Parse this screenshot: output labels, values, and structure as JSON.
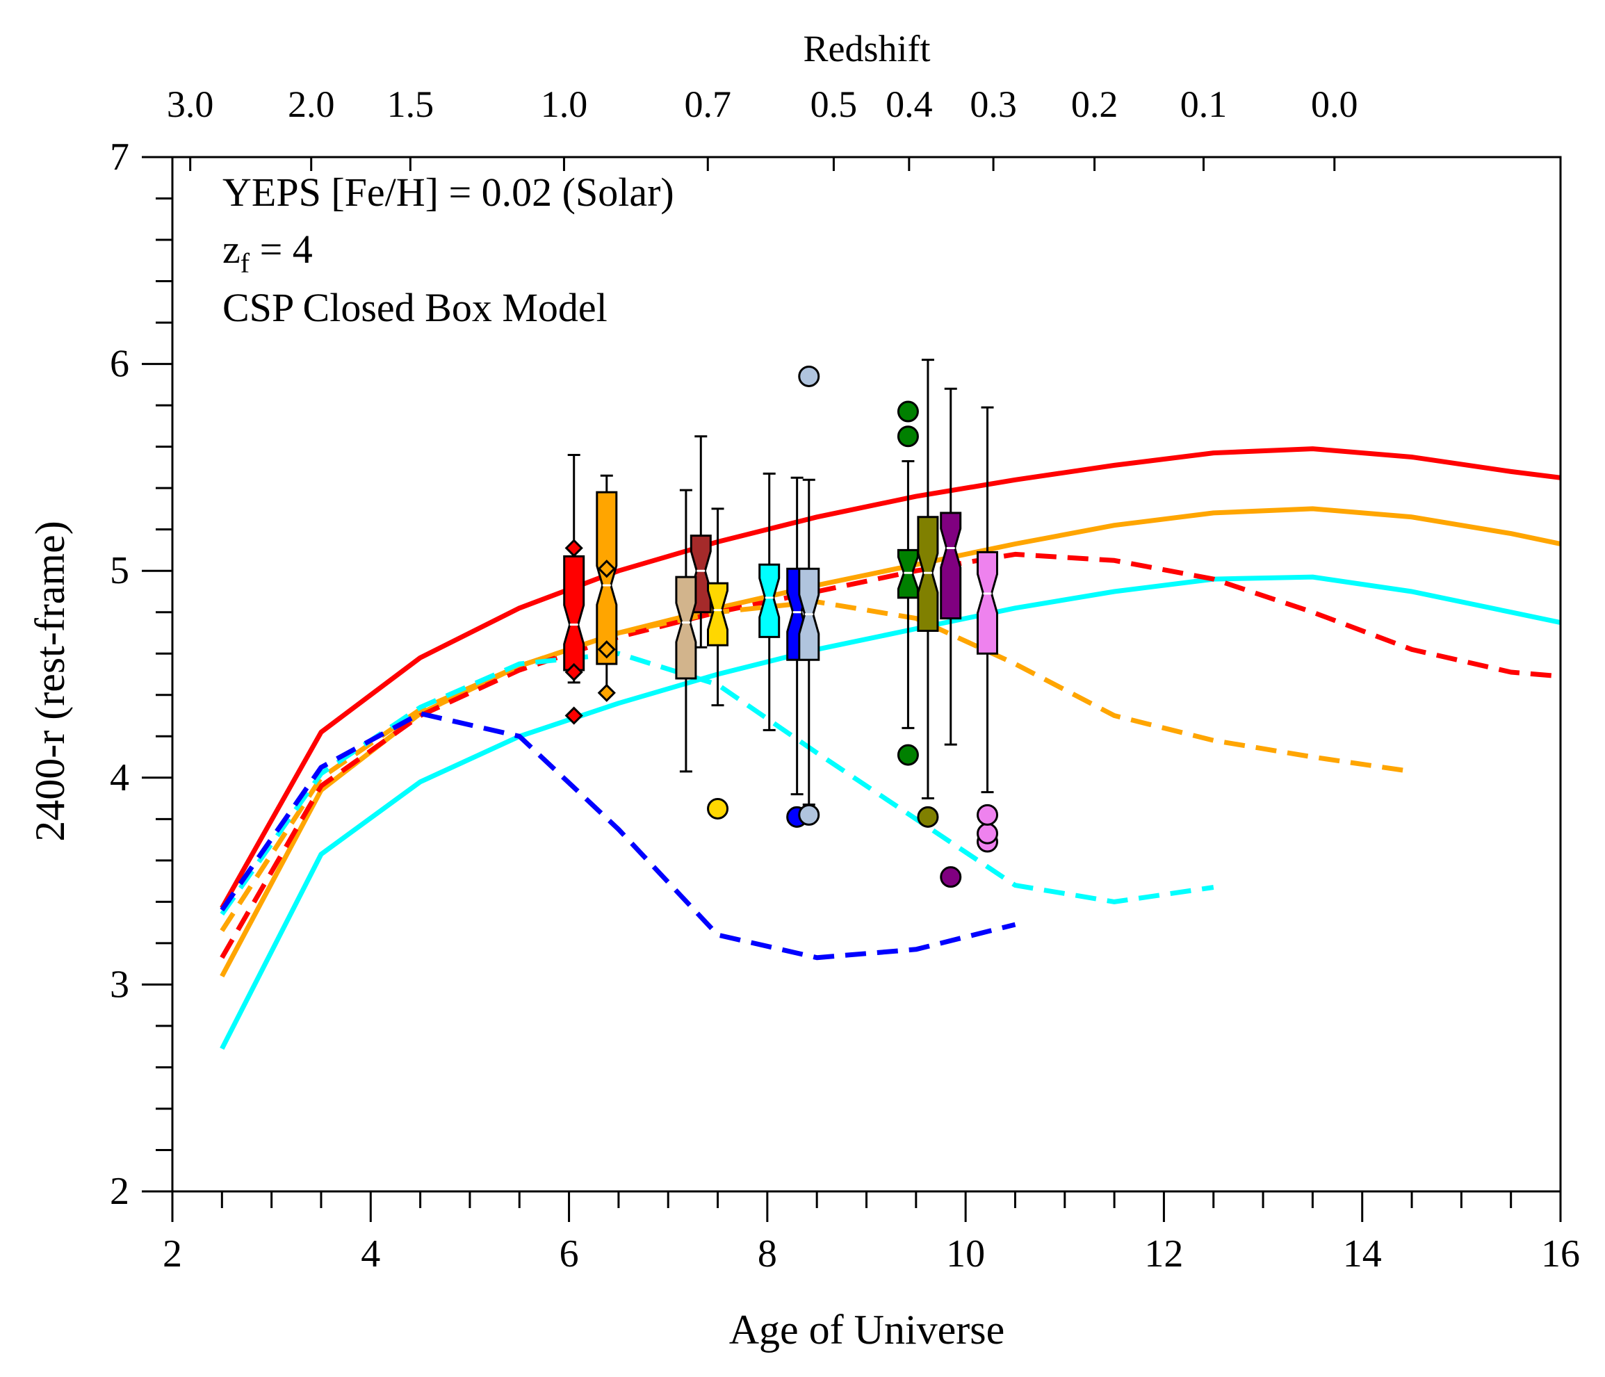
{
  "chart_data": {
    "type": "line",
    "xlabel": "Age of Universe",
    "ylabel": "2400-r (rest-frame)",
    "top_axis_label": "Redshift",
    "xlim": [
      2,
      16
    ],
    "ylim": [
      2,
      7
    ],
    "xticks": [
      "2",
      "4",
      "6",
      "8",
      "10",
      "12",
      "14",
      "16"
    ],
    "yticks": [
      "2",
      "3",
      "4",
      "5",
      "6",
      "7"
    ],
    "redshift_ticks": [
      {
        "label": "3.0",
        "age": 2.18
      },
      {
        "label": "2.0",
        "age": 3.4
      },
      {
        "label": "1.5",
        "age": 4.4
      },
      {
        "label": "1.0",
        "age": 5.95
      },
      {
        "label": "0.7",
        "age": 7.4
      },
      {
        "label": "0.5",
        "age": 8.67
      },
      {
        "label": "0.4",
        "age": 9.43
      },
      {
        "label": "0.3",
        "age": 10.28
      },
      {
        "label": "0.2",
        "age": 11.3
      },
      {
        "label": "0.1",
        "age": 12.4
      },
      {
        "label": "0.0",
        "age": 13.72
      }
    ],
    "annotations": {
      "line1": "YEPS [Fe/H] = 0.02 (Solar)",
      "line2_main": "z",
      "line2_sub": "f",
      "line2_rest": " = 4",
      "line3": "CSP Closed Box Model"
    },
    "series": [
      {
        "name": "red-solid",
        "color": "#ff0000",
        "style": "solid",
        "x": [
          2.5,
          3.5,
          4.5,
          5.5,
          6.5,
          7.5,
          8.5,
          9.5,
          10.5,
          11.5,
          12.5,
          13.5,
          14.5,
          15.5,
          16
        ],
        "y": [
          3.37,
          4.22,
          4.58,
          4.82,
          5.0,
          5.14,
          5.26,
          5.36,
          5.44,
          5.51,
          5.57,
          5.59,
          5.55,
          5.48,
          5.45
        ]
      },
      {
        "name": "orange-solid",
        "color": "#ffa500",
        "style": "solid",
        "x": [
          2.5,
          3.5,
          4.5,
          5.5,
          6.5,
          7.5,
          8.5,
          9.5,
          10.5,
          11.5,
          12.5,
          13.5,
          14.5,
          15.5,
          16
        ],
        "y": [
          3.04,
          3.94,
          4.31,
          4.54,
          4.7,
          4.82,
          4.93,
          5.03,
          5.13,
          5.22,
          5.28,
          5.3,
          5.26,
          5.18,
          5.13
        ]
      },
      {
        "name": "cyan-solid",
        "color": "#00ffff",
        "style": "solid",
        "x": [
          2.5,
          3.5,
          4.5,
          5.5,
          6.5,
          7.5,
          8.5,
          9.5,
          10.5,
          11.5,
          12.5,
          13.5,
          14.5,
          15.5,
          16
        ],
        "y": [
          2.69,
          3.63,
          3.98,
          4.2,
          4.36,
          4.5,
          4.62,
          4.72,
          4.82,
          4.9,
          4.96,
          4.97,
          4.9,
          4.8,
          4.75
        ]
      },
      {
        "name": "red-dashed",
        "color": "#ff0000",
        "style": "dashed",
        "x": [
          2.5,
          3.5,
          4.5,
          5.5,
          6.5,
          7.5,
          8.5,
          9.5,
          10.5,
          11.5,
          12.5,
          13.5,
          14.5,
          15.5,
          16
        ],
        "y": [
          3.13,
          3.96,
          4.3,
          4.52,
          4.68,
          4.8,
          4.9,
          5.0,
          5.08,
          5.05,
          4.96,
          4.8,
          4.62,
          4.51,
          4.49
        ]
      },
      {
        "name": "orange-dashed",
        "color": "#ffa500",
        "style": "dashed",
        "x": [
          2.5,
          3.5,
          4.5,
          5.5,
          6.5,
          7.5,
          8.5,
          9.5,
          10.5,
          11.5,
          12.5,
          13.5,
          14.5
        ],
        "y": [
          3.26,
          4.0,
          4.33,
          4.54,
          4.7,
          4.8,
          4.85,
          4.77,
          4.55,
          4.3,
          4.18,
          4.1,
          4.03
        ]
      },
      {
        "name": "cyan-dashed",
        "color": "#00ffff",
        "style": "dashed",
        "x": [
          2.5,
          3.5,
          4.5,
          5.5,
          6.5,
          7.5,
          8.5,
          9.5,
          10.5,
          11.5,
          12.5
        ],
        "y": [
          3.34,
          4.02,
          4.34,
          4.55,
          4.6,
          4.45,
          4.12,
          3.8,
          3.48,
          3.4,
          3.47
        ]
      },
      {
        "name": "blue-dashed",
        "color": "#0000ff",
        "style": "dashed",
        "x": [
          2.5,
          3.5,
          4.5,
          5.5,
          6.5,
          7.5,
          8.5,
          9.5,
          10.5
        ],
        "y": [
          3.36,
          4.05,
          4.31,
          4.2,
          3.75,
          3.24,
          3.13,
          3.17,
          3.29
        ]
      }
    ],
    "boxes": [
      {
        "name": "red",
        "color": "#ff0000",
        "x": 6.05,
        "whisker_low": 4.46,
        "q1": 4.52,
        "median": 4.74,
        "q3": 5.07,
        "whisker_high": 5.56,
        "outliers": [
          4.3,
          4.51,
          5.11
        ],
        "marker": "diamond"
      },
      {
        "name": "orange",
        "color": "#ffa500",
        "x": 6.38,
        "whisker_low": 4.4,
        "q1": 4.55,
        "median": 4.93,
        "q3": 5.38,
        "whisker_high": 5.46,
        "outliers": [
          4.41,
          4.62,
          5.01
        ],
        "marker": "diamond"
      },
      {
        "name": "brown",
        "color": "#a52a2a",
        "x": 7.33,
        "whisker_low": 4.63,
        "q1": 4.8,
        "median": 5.0,
        "q3": 5.17,
        "whisker_high": 5.65,
        "outliers": [],
        "marker": "circle"
      },
      {
        "name": "tan",
        "color": "#d2b48c",
        "x": 7.18,
        "whisker_low": 4.03,
        "q1": 4.48,
        "median": 4.75,
        "q3": 4.97,
        "whisker_high": 5.39,
        "outliers": [],
        "marker": "circle"
      },
      {
        "name": "gold",
        "color": "#ffd700",
        "x": 7.5,
        "whisker_low": 4.35,
        "q1": 4.64,
        "median": 4.81,
        "q3": 4.94,
        "whisker_high": 5.3,
        "outliers": [
          3.85
        ],
        "marker": "circle"
      },
      {
        "name": "cyan",
        "color": "#00ffff",
        "x": 8.02,
        "whisker_low": 4.23,
        "q1": 4.68,
        "median": 4.87,
        "q3": 5.03,
        "whisker_high": 5.47,
        "outliers": [],
        "marker": "circle"
      },
      {
        "name": "blue",
        "color": "#0000ff",
        "x": 8.3,
        "whisker_low": 3.92,
        "q1": 4.57,
        "median": 4.8,
        "q3": 5.01,
        "whisker_high": 5.45,
        "outliers": [
          3.81
        ],
        "marker": "circle"
      },
      {
        "name": "lightsteelblue",
        "color": "#b0c4de",
        "x": 8.42,
        "whisker_low": 3.87,
        "q1": 4.57,
        "median": 4.79,
        "q3": 5.01,
        "whisker_high": 5.44,
        "outliers": [
          3.82,
          5.94
        ],
        "marker": "circle"
      },
      {
        "name": "green",
        "color": "#008000",
        "x": 9.42,
        "whisker_low": 4.24,
        "q1": 4.87,
        "median": 4.99,
        "q3": 5.1,
        "whisker_high": 5.53,
        "outliers": [
          4.11,
          5.65,
          5.77
        ],
        "marker": "circle"
      },
      {
        "name": "olive",
        "color": "#808000",
        "x": 9.62,
        "whisker_low": 3.9,
        "q1": 4.71,
        "median": 4.99,
        "q3": 5.26,
        "whisker_high": 6.02,
        "outliers": [
          3.81
        ],
        "marker": "circle"
      },
      {
        "name": "purple",
        "color": "#800080",
        "x": 9.85,
        "whisker_low": 4.16,
        "q1": 4.77,
        "median": 5.11,
        "q3": 5.28,
        "whisker_high": 5.88,
        "outliers": [
          3.52
        ],
        "marker": "circle"
      },
      {
        "name": "violet",
        "color": "#ee82ee",
        "x": 10.22,
        "whisker_low": 3.93,
        "q1": 4.6,
        "median": 4.89,
        "q3": 5.09,
        "whisker_high": 5.79,
        "outliers": [
          3.69,
          3.73,
          3.82
        ],
        "marker": "circle"
      }
    ]
  }
}
